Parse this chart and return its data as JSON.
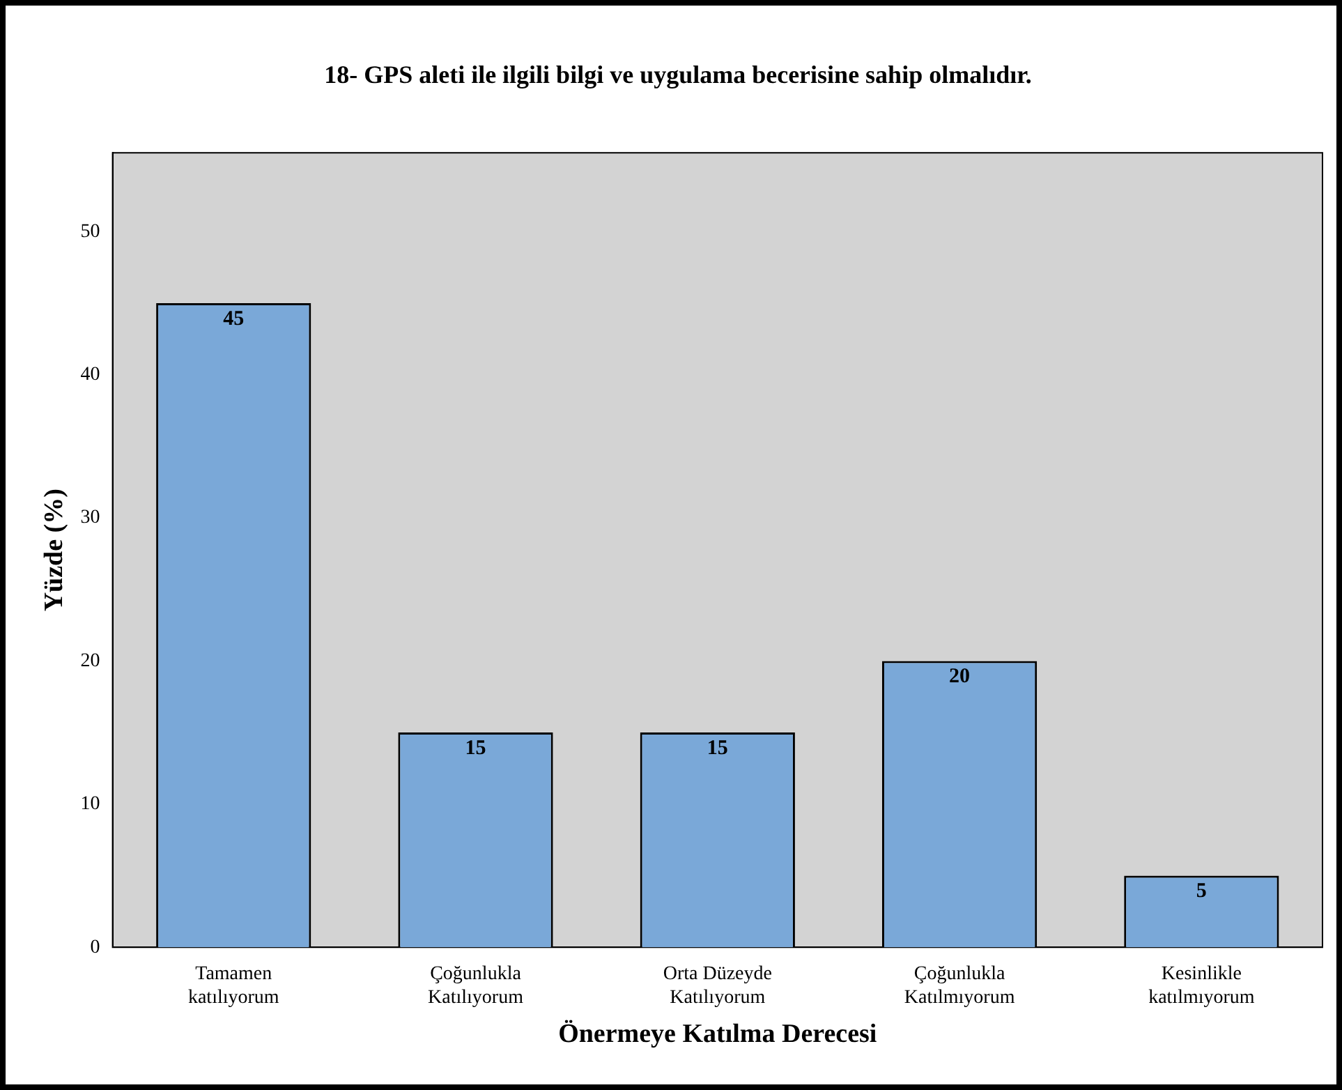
{
  "chart_data": {
    "type": "bar",
    "title": "18- GPS aleti ile ilgili bilgi ve uygulama becerisine sahip olmalıdır.",
    "xlabel": "Önermeye Katılma Derecesi",
    "ylabel": "Yüzde (%)",
    "categories": [
      "Tamamen katılıyorum",
      "Çoğunlukla Katılıyorum",
      "Orta Düzeyde Katılıyorum",
      "Çoğunlukla Katılmıyorum",
      "Kesinlikle katılmıyorum"
    ],
    "values": [
      45,
      15,
      15,
      20,
      5
    ],
    "color": "#7aa8d8",
    "ylim": [
      0,
      55.5
    ],
    "yticks": [
      0,
      10,
      20,
      30,
      40,
      50
    ],
    "grid": false,
    "data_labels": true
  }
}
